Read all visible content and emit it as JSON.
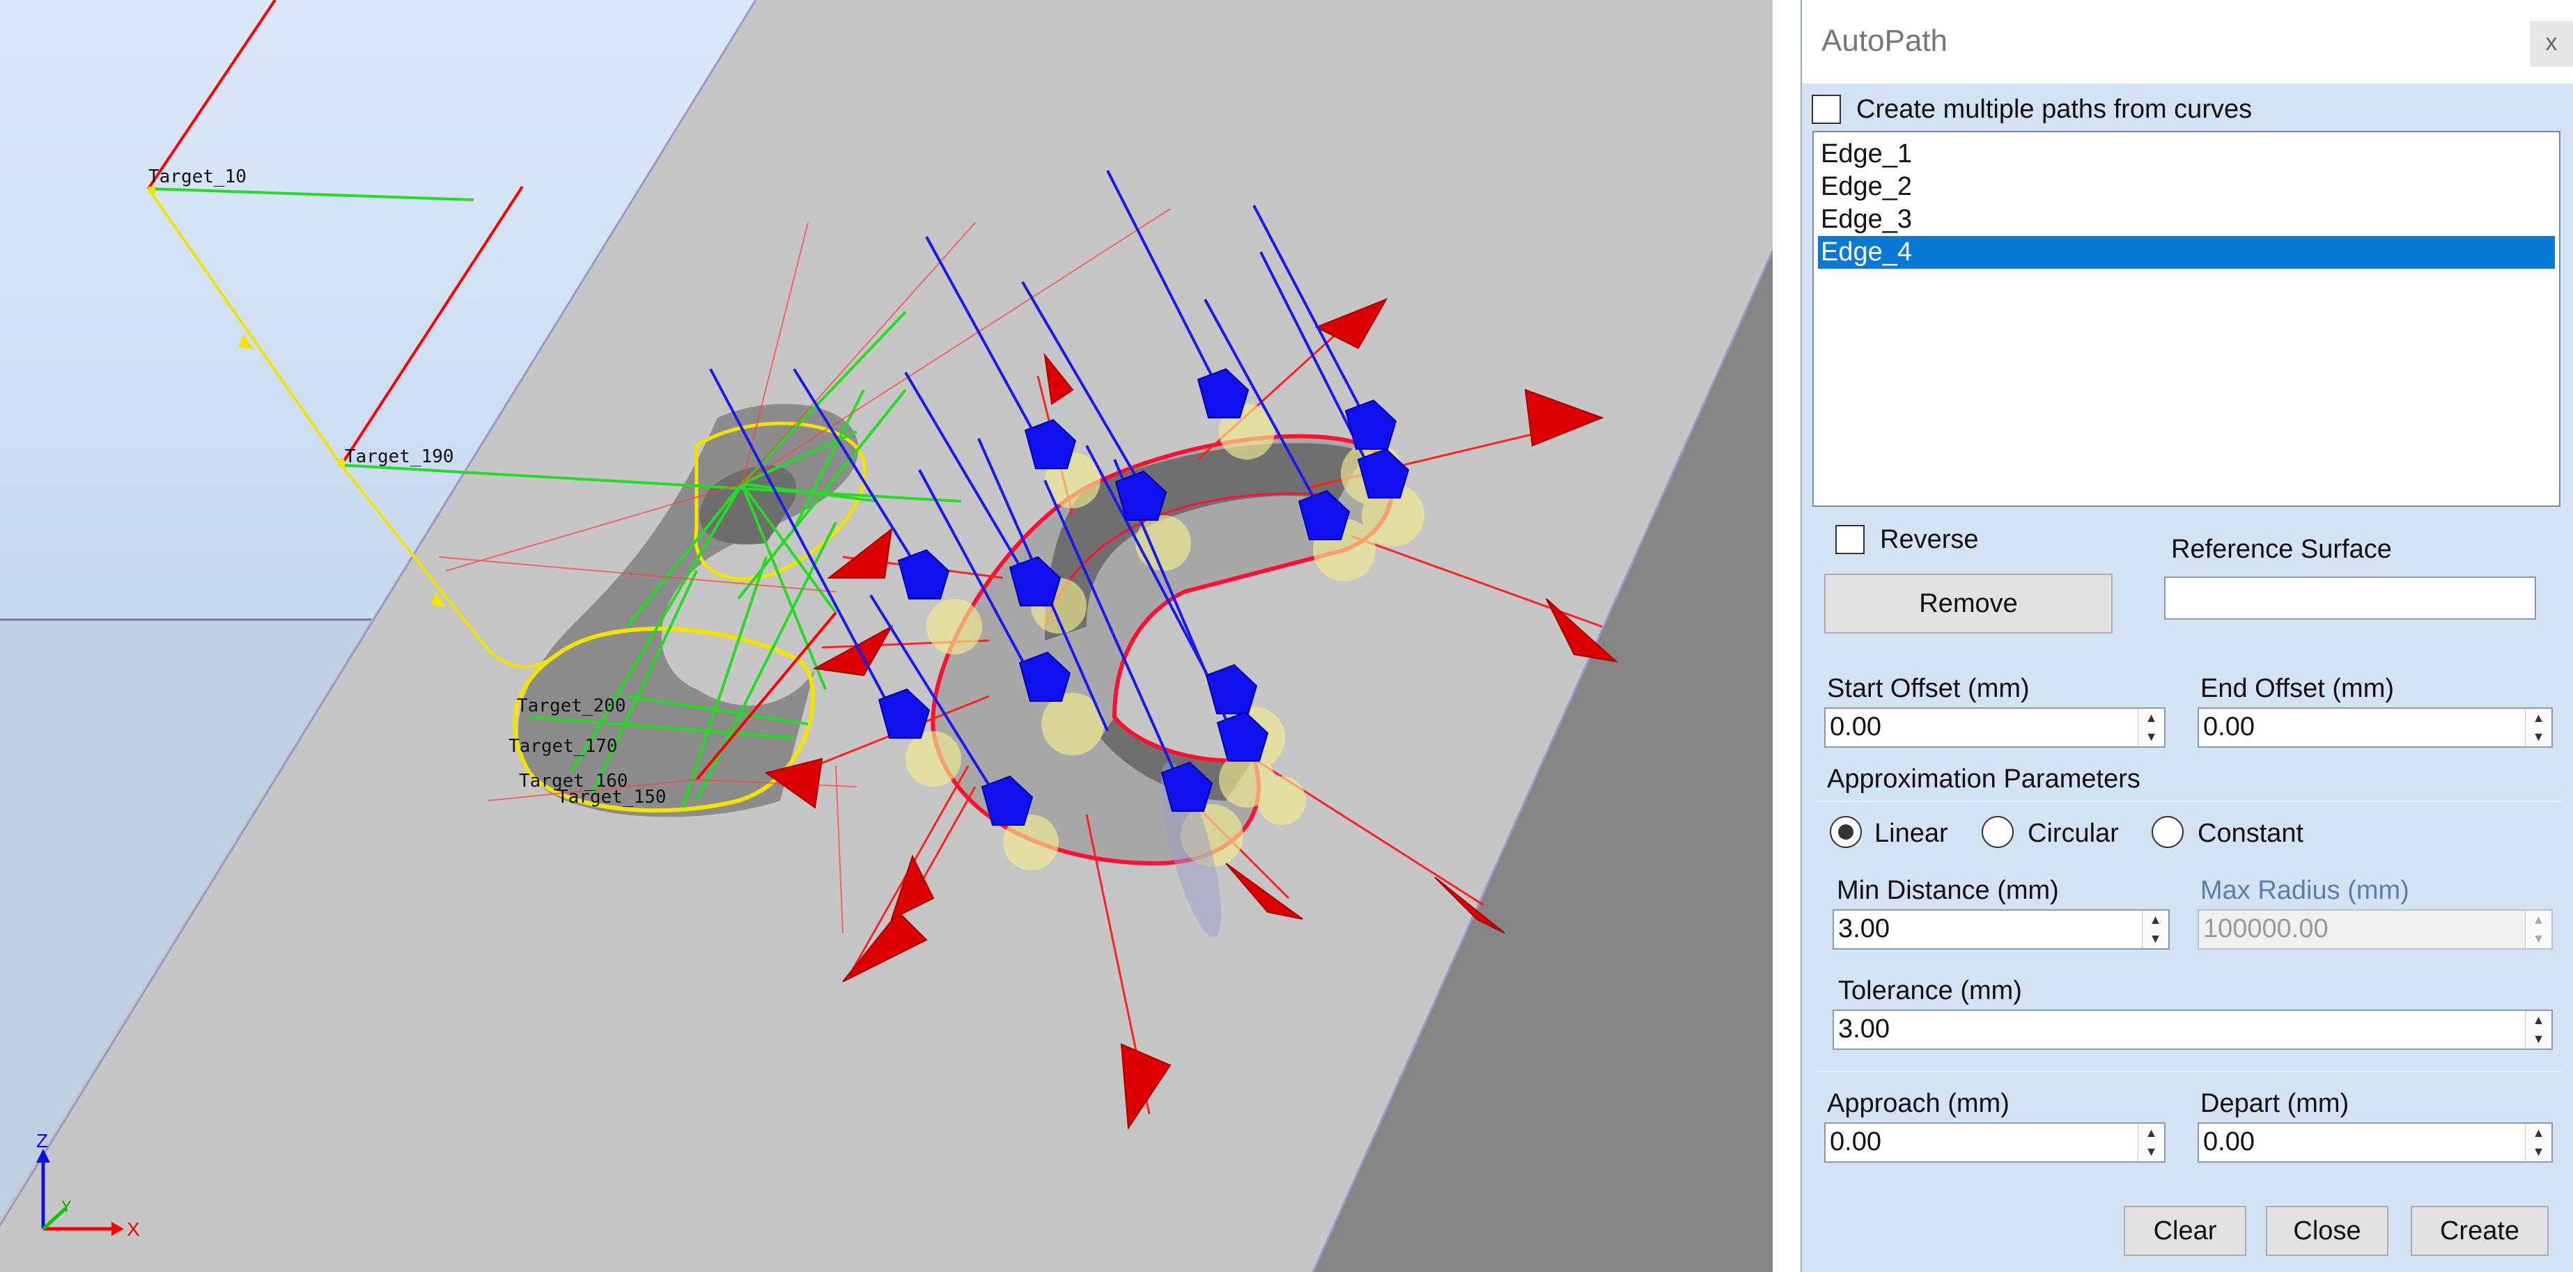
{
  "viewport": {
    "target_labels": [
      "Target_10",
      "Target_190",
      "Target_200",
      "Target_170",
      "Target_160",
      "Target_150"
    ],
    "axis": {
      "x": "X",
      "y": "Y",
      "z": "Z"
    },
    "colors": {
      "background": "#c8c8c8",
      "sky": "#cfe0f5",
      "target_path": "#f0e400",
      "normal": "#0000ff",
      "axis_x": "#ff0000",
      "axis_y": "#00dd00",
      "marker": "#1010ee",
      "arrow": "#dd0000"
    }
  },
  "panel": {
    "title": "AutoPath",
    "close_label": "x",
    "multiple_paths_label": "Create multiple paths from curves",
    "edges": [
      "Edge_1",
      "Edge_2",
      "Edge_3",
      "Edge_4"
    ],
    "selected_edge": "Edge_4",
    "reverse_label": "Reverse",
    "reference_surface_label": "Reference Surface",
    "reference_surface_value": "",
    "remove_label": "Remove",
    "start_offset_label": "Start Offset (mm)",
    "start_offset_value": "0.00",
    "end_offset_label": "End Offset (mm)",
    "end_offset_value": "0.00",
    "approximation_label": "Approximation Parameters",
    "mode_options": [
      "Linear",
      "Circular",
      "Constant"
    ],
    "selected_mode": "Linear",
    "min_distance_label": "Min Distance (mm)",
    "min_distance_value": "3.00",
    "max_radius_label": "Max Radius (mm)",
    "max_radius_value": "100000.00",
    "tolerance_label": "Tolerance (mm)",
    "tolerance_value": "3.00",
    "approach_label": "Approach (mm)",
    "approach_value": "0.00",
    "depart_label": "Depart (mm)",
    "depart_value": "0.00",
    "clear_label": "Clear",
    "close_button_label": "Close",
    "create_label": "Create"
  }
}
